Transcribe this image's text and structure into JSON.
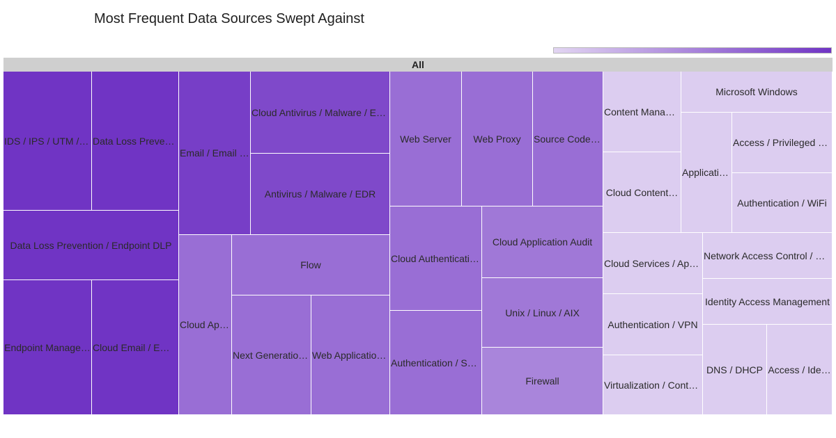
{
  "chart_data": {
    "type": "treemap",
    "title": "Most Frequent Data Sources Swept Against",
    "root_label": "All",
    "colorscale": [
      "#e2d5f2",
      "#7034c4"
    ],
    "legend": "colorbar top-right",
    "nodes": [
      {
        "label": "IDS / IPS / UTM / T…",
        "value": 25.3,
        "level": 1.0
      },
      {
        "label": "Data Loss Prevent…",
        "value": 24.6,
        "level": 1.0
      },
      {
        "label": "Data Loss Prevention / Endpoint DLP",
        "value": 25.0,
        "level": 1.0
      },
      {
        "label": "Endpoint Manage…",
        "value": 24.5,
        "level": 1.0
      },
      {
        "label": "Cloud Email / Ema…",
        "value": 24.0,
        "level": 1.0
      },
      {
        "label": "Email / Email S…",
        "value": 23.6,
        "level": 0.94
      },
      {
        "label": "Cloud Antivirus / Malware / EDR",
        "value": 23.0,
        "level": 0.87
      },
      {
        "label": "Antivirus / Malware / EDR",
        "value": 23.0,
        "level": 0.87
      },
      {
        "label": "Cloud Appl…",
        "value": 19.9,
        "level": 0.64
      },
      {
        "label": "Flow",
        "value": 18.4,
        "level": 0.64
      },
      {
        "label": "Next Generation…",
        "value": 19.6,
        "level": 0.64
      },
      {
        "label": "Web Application…",
        "value": 19.6,
        "level": 0.64
      },
      {
        "label": "Web Server",
        "value": 16.9,
        "level": 0.64
      },
      {
        "label": "Web Proxy",
        "value": 16.9,
        "level": 0.64
      },
      {
        "label": "Source Code R…",
        "value": 16.9,
        "level": 0.64
      },
      {
        "label": "Cloud Authenticatio…",
        "value": 15.7,
        "level": 0.64
      },
      {
        "label": "Authentication / SS…",
        "value": 15.7,
        "level": 0.64
      },
      {
        "label": "Cloud Application Audit",
        "value": 15.4,
        "level": 0.58
      },
      {
        "label": "Unix / Linux / AIX",
        "value": 15.4,
        "level": 0.58
      },
      {
        "label": "Firewall",
        "value": 15.4,
        "level": 0.5
      },
      {
        "label": "Content Manag…",
        "value": 10.0,
        "level": 0.05
      },
      {
        "label": "Cloud Content…",
        "value": 10.0,
        "level": 0.05
      },
      {
        "label": "Applicatio…",
        "value": 10.0,
        "level": 0.05
      },
      {
        "label": "Microsoft Windows",
        "value": 10.0,
        "level": 0.05
      },
      {
        "label": "Access / Privileged U…",
        "value": 9.0,
        "level": 0.05
      },
      {
        "label": "Authentication / WiFi",
        "value": 9.0,
        "level": 0.05
      },
      {
        "label": "Cloud Services / App…",
        "value": 8.0,
        "level": 0.05
      },
      {
        "label": "Authentication / VPN",
        "value": 8.0,
        "level": 0.05
      },
      {
        "label": "Virtualization / Conta…",
        "value": 8.0,
        "level": 0.05
      },
      {
        "label": "Network Access Control / N…",
        "value": 7.5,
        "level": 0.05
      },
      {
        "label": "Identity Access Management",
        "value": 7.5,
        "level": 0.05
      },
      {
        "label": "DNS / DHCP",
        "value": 7.0,
        "level": 0.05
      },
      {
        "label": "Access / Ide…",
        "value": 7.0,
        "level": 0.05
      }
    ]
  }
}
